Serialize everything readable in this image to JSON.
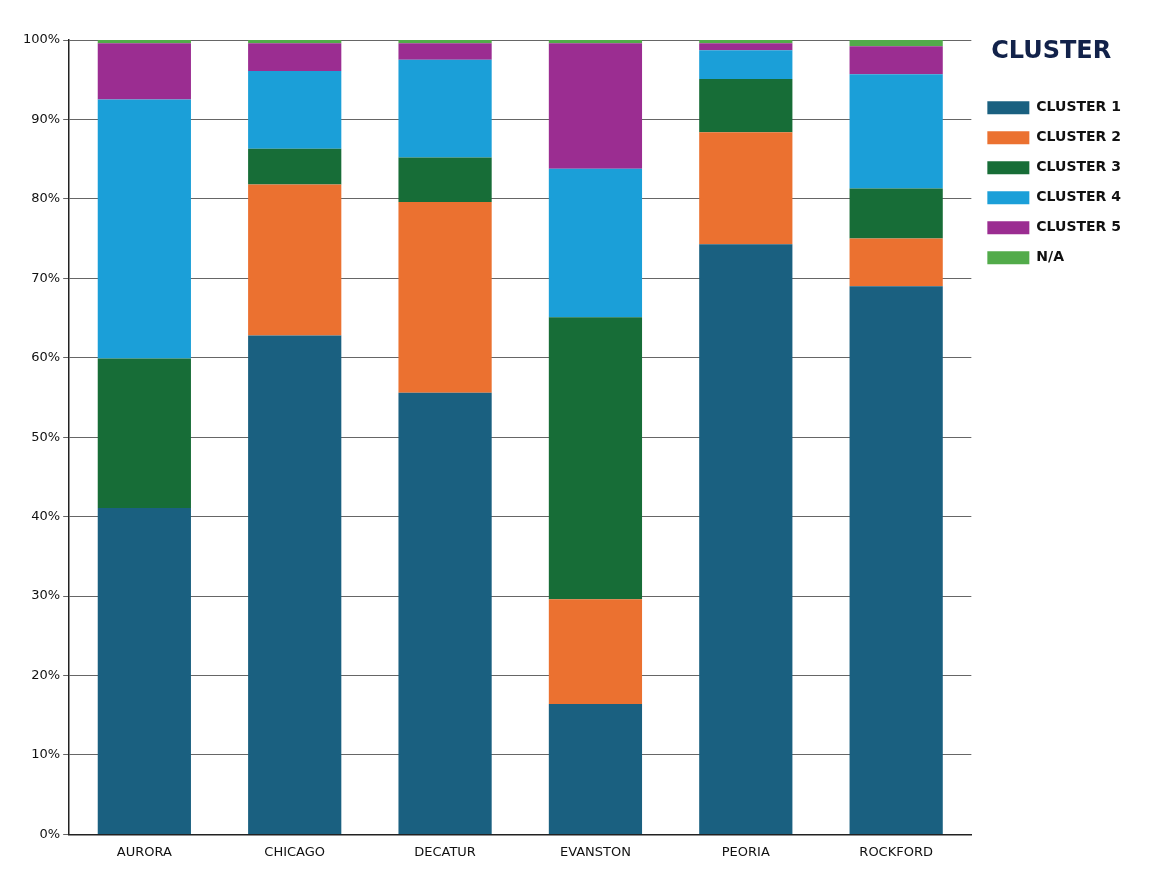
{
  "chart_data": {
    "type": "bar",
    "stacked": true,
    "legend_title": "CLUSTER",
    "legend": "top right",
    "grid": "y",
    "categories": [
      "AURORA",
      "CHICAGO",
      "DECATUR",
      "EVANSTON",
      "PEORIA",
      "ROCKFORD"
    ],
    "series": [
      {
        "name": "CLUSTER 1",
        "color": "#1a6080",
        "values": [
          41.1,
          62.8,
          55.6,
          16.4,
          74.3,
          69.0
        ]
      },
      {
        "name": "CLUSTER 2",
        "color": "#eb7130",
        "values": [
          0,
          19.0,
          24.0,
          13.2,
          14.1,
          6.0
        ]
      },
      {
        "name": "CLUSTER 3",
        "color": "#176d37",
        "values": [
          18.8,
          4.5,
          5.6,
          35.5,
          6.7,
          6.3
        ]
      },
      {
        "name": "CLUSTER 4",
        "color": "#1b9fd8",
        "values": [
          32.6,
          9.8,
          12.3,
          18.7,
          3.6,
          14.4
        ]
      },
      {
        "name": "CLUSTER 5",
        "color": "#9b2d91",
        "values": [
          7.1,
          3.5,
          2.1,
          15.8,
          0.9,
          3.5
        ]
      },
      {
        "name": "N/A",
        "color": "#52ab4a",
        "values": [
          0.4,
          0.4,
          0.4,
          0.4,
          0.4,
          0.8
        ]
      }
    ],
    "ylim": [
      0,
      100
    ],
    "yticks": [
      {
        "value": 0,
        "label": "0%"
      },
      {
        "value": 10,
        "label": "10%"
      },
      {
        "value": 20,
        "label": "20%"
      },
      {
        "value": 30,
        "label": "30%"
      },
      {
        "value": 40,
        "label": "40%"
      },
      {
        "value": 50,
        "label": "50%"
      },
      {
        "value": 60,
        "label": "60%"
      },
      {
        "value": 70,
        "label": "70%"
      },
      {
        "value": 80,
        "label": "80%"
      },
      {
        "value": 90,
        "label": "90%"
      },
      {
        "value": 100,
        "label": "100%"
      }
    ]
  }
}
